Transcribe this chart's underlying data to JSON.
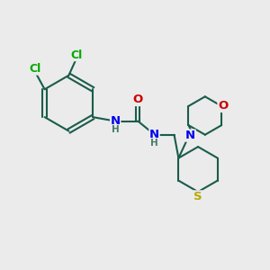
{
  "bg_color": "#ebebeb",
  "bond_color": "#1a5c4a",
  "bond_width": 1.5,
  "atom_colors": {
    "N": "#0000ee",
    "O": "#cc0000",
    "S": "#b8a800",
    "Cl": "#00aa00",
    "H": "#4a7a6a"
  },
  "font_size": 8.5,
  "figsize": [
    3.0,
    3.0
  ],
  "dpi": 100
}
